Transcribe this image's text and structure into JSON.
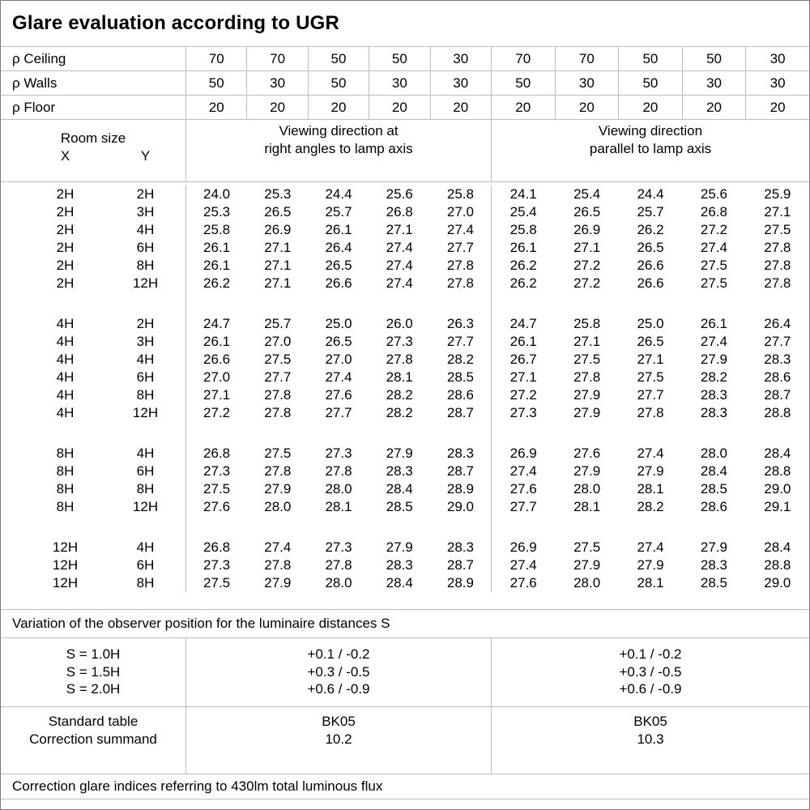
{
  "title": "Glare evaluation according to UGR",
  "colors": {
    "grid": "#bdbdbd",
    "border": "#7a7a7a"
  },
  "reflectance_rows": [
    {
      "label": "ρ Ceiling",
      "values": [
        "70",
        "70",
        "50",
        "50",
        "30",
        "70",
        "70",
        "50",
        "50",
        "30"
      ]
    },
    {
      "label": "ρ Walls",
      "values": [
        "50",
        "30",
        "50",
        "30",
        "30",
        "50",
        "30",
        "50",
        "30",
        "30"
      ]
    },
    {
      "label": "ρ Floor",
      "values": [
        "20",
        "20",
        "20",
        "20",
        "20",
        "20",
        "20",
        "20",
        "20",
        "20"
      ]
    }
  ],
  "room_size": {
    "title": "Room size",
    "x": "X",
    "y": "Y"
  },
  "viewing_right_angles": {
    "line1": "Viewing direction at",
    "line2": "right angles to lamp axis"
  },
  "viewing_parallel": {
    "line1": "Viewing direction",
    "line2": "parallel to lamp axis"
  },
  "ugr_table": {
    "blocks": [
      {
        "rows": [
          {
            "x": "2H",
            "y": "2H",
            "right_angles": [
              "24.0",
              "25.3",
              "24.4",
              "25.6",
              "25.8"
            ],
            "parallel": [
              "24.1",
              "25.4",
              "24.4",
              "25.6",
              "25.9"
            ]
          },
          {
            "x": "2H",
            "y": "3H",
            "right_angles": [
              "25.3",
              "26.5",
              "25.7",
              "26.8",
              "27.0"
            ],
            "parallel": [
              "25.4",
              "26.5",
              "25.7",
              "26.8",
              "27.1"
            ]
          },
          {
            "x": "2H",
            "y": "4H",
            "right_angles": [
              "25.8",
              "26.9",
              "26.1",
              "27.1",
              "27.4"
            ],
            "parallel": [
              "25.8",
              "26.9",
              "26.2",
              "27.2",
              "27.5"
            ]
          },
          {
            "x": "2H",
            "y": "6H",
            "right_angles": [
              "26.1",
              "27.1",
              "26.4",
              "27.4",
              "27.7"
            ],
            "parallel": [
              "26.1",
              "27.1",
              "26.5",
              "27.4",
              "27.8"
            ]
          },
          {
            "x": "2H",
            "y": "8H",
            "right_angles": [
              "26.1",
              "27.1",
              "26.5",
              "27.4",
              "27.8"
            ],
            "parallel": [
              "26.2",
              "27.2",
              "26.6",
              "27.5",
              "27.8"
            ]
          },
          {
            "x": "2H",
            "y": "12H",
            "right_angles": [
              "26.2",
              "27.1",
              "26.6",
              "27.4",
              "27.8"
            ],
            "parallel": [
              "26.2",
              "27.2",
              "26.6",
              "27.5",
              "27.8"
            ]
          }
        ]
      },
      {
        "rows": [
          {
            "x": "4H",
            "y": "2H",
            "right_angles": [
              "24.7",
              "25.7",
              "25.0",
              "26.0",
              "26.3"
            ],
            "parallel": [
              "24.7",
              "25.8",
              "25.0",
              "26.1",
              "26.4"
            ]
          },
          {
            "x": "4H",
            "y": "3H",
            "right_angles": [
              "26.1",
              "27.0",
              "26.5",
              "27.3",
              "27.7"
            ],
            "parallel": [
              "26.1",
              "27.1",
              "26.5",
              "27.4",
              "27.7"
            ]
          },
          {
            "x": "4H",
            "y": "4H",
            "right_angles": [
              "26.6",
              "27.5",
              "27.0",
              "27.8",
              "28.2"
            ],
            "parallel": [
              "26.7",
              "27.5",
              "27.1",
              "27.9",
              "28.3"
            ]
          },
          {
            "x": "4H",
            "y": "6H",
            "right_angles": [
              "27.0",
              "27.7",
              "27.4",
              "28.1",
              "28.5"
            ],
            "parallel": [
              "27.1",
              "27.8",
              "27.5",
              "28.2",
              "28.6"
            ]
          },
          {
            "x": "4H",
            "y": "8H",
            "right_angles": [
              "27.1",
              "27.8",
              "27.6",
              "28.2",
              "28.6"
            ],
            "parallel": [
              "27.2",
              "27.9",
              "27.7",
              "28.3",
              "28.7"
            ]
          },
          {
            "x": "4H",
            "y": "12H",
            "right_angles": [
              "27.2",
              "27.8",
              "27.7",
              "28.2",
              "28.7"
            ],
            "parallel": [
              "27.3",
              "27.9",
              "27.8",
              "28.3",
              "28.8"
            ]
          }
        ]
      },
      {
        "rows": [
          {
            "x": "8H",
            "y": "4H",
            "right_angles": [
              "26.8",
              "27.5",
              "27.3",
              "27.9",
              "28.3"
            ],
            "parallel": [
              "26.9",
              "27.6",
              "27.4",
              "28.0",
              "28.4"
            ]
          },
          {
            "x": "8H",
            "y": "6H",
            "right_angles": [
              "27.3",
              "27.8",
              "27.8",
              "28.3",
              "28.7"
            ],
            "parallel": [
              "27.4",
              "27.9",
              "27.9",
              "28.4",
              "28.8"
            ]
          },
          {
            "x": "8H",
            "y": "8H",
            "right_angles": [
              "27.5",
              "27.9",
              "28.0",
              "28.4",
              "28.9"
            ],
            "parallel": [
              "27.6",
              "28.0",
              "28.1",
              "28.5",
              "29.0"
            ]
          },
          {
            "x": "8H",
            "y": "12H",
            "right_angles": [
              "27.6",
              "28.0",
              "28.1",
              "28.5",
              "29.0"
            ],
            "parallel": [
              "27.7",
              "28.1",
              "28.2",
              "28.6",
              "29.1"
            ]
          }
        ]
      },
      {
        "rows": [
          {
            "x": "12H",
            "y": "4H",
            "right_angles": [
              "26.8",
              "27.4",
              "27.3",
              "27.9",
              "28.3"
            ],
            "parallel": [
              "26.9",
              "27.5",
              "27.4",
              "27.9",
              "28.4"
            ]
          },
          {
            "x": "12H",
            "y": "6H",
            "right_angles": [
              "27.3",
              "27.8",
              "27.8",
              "28.3",
              "28.7"
            ],
            "parallel": [
              "27.4",
              "27.9",
              "27.9",
              "28.3",
              "28.8"
            ]
          },
          {
            "x": "12H",
            "y": "8H",
            "right_angles": [
              "27.5",
              "27.9",
              "28.0",
              "28.4",
              "28.9"
            ],
            "parallel": [
              "27.6",
              "28.0",
              "28.1",
              "28.5",
              "29.0"
            ]
          }
        ]
      }
    ]
  },
  "variation_note": "Variation of the observer position for the luminaire distances S",
  "spacing_rows": [
    {
      "label": "S = 1.0H",
      "right_angles": "+0.1 / -0.2",
      "parallel": "+0.1 / -0.2"
    },
    {
      "label": "S = 1.5H",
      "right_angles": "+0.3 / -0.5",
      "parallel": "+0.3 / -0.5"
    },
    {
      "label": "S = 2.0H",
      "right_angles": "+0.6 / -0.9",
      "parallel": "+0.6 / -0.9"
    }
  ],
  "standard": {
    "label1": "Standard table",
    "label2": "Correction summand",
    "right_angles": {
      "table": "BK05",
      "summand": "10.2"
    },
    "parallel": {
      "table": "BK05",
      "summand": "10.3"
    }
  },
  "footer_note": "Correction glare indices referring to 430lm total luminous flux"
}
